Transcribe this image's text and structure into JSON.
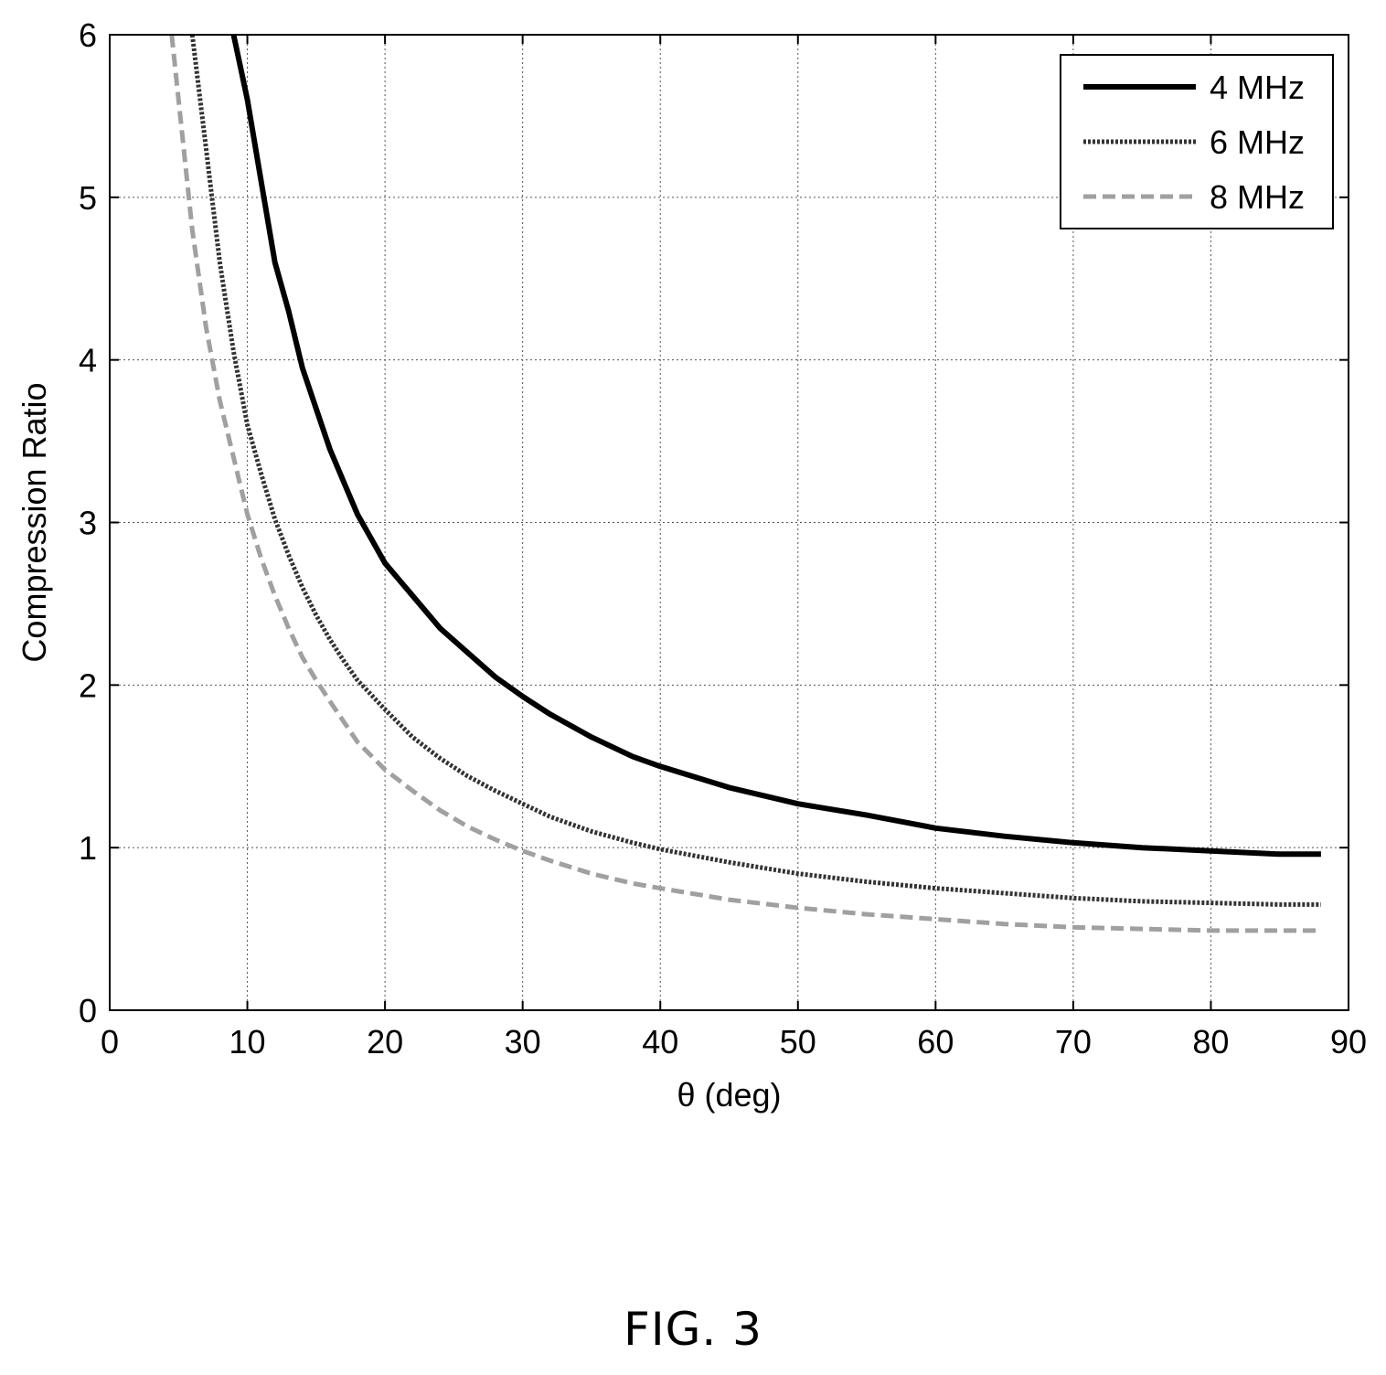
{
  "chart_data": {
    "type": "line",
    "title": "",
    "xlabel": "θ (deg)",
    "ylabel": "Compression Ratio",
    "xlim": [
      0,
      90
    ],
    "ylim": [
      0,
      6
    ],
    "xticks": [
      0,
      10,
      20,
      30,
      40,
      50,
      60,
      70,
      80,
      90
    ],
    "yticks": [
      0,
      1,
      2,
      3,
      4,
      5,
      6
    ],
    "grid": true,
    "legend_position": "top-right",
    "series": [
      {
        "name": "4 MHz",
        "style": "solid",
        "color": "#000000",
        "x": [
          9,
          10,
          11,
          12,
          13,
          14,
          15,
          16,
          17,
          18,
          19,
          20,
          22,
          24,
          26,
          28,
          30,
          32,
          35,
          38,
          40,
          45,
          50,
          55,
          60,
          65,
          70,
          75,
          80,
          85,
          88
        ],
        "y": [
          6.0,
          5.6,
          5.1,
          4.6,
          4.3,
          3.95,
          3.7,
          3.45,
          3.25,
          3.05,
          2.9,
          2.75,
          2.55,
          2.35,
          2.2,
          2.05,
          1.93,
          1.82,
          1.68,
          1.56,
          1.5,
          1.37,
          1.27,
          1.2,
          1.12,
          1.07,
          1.03,
          1.0,
          0.98,
          0.96,
          0.96
        ]
      },
      {
        "name": "6 MHz",
        "style": "dotted",
        "color": "#333333",
        "x": [
          6,
          7,
          8,
          9,
          10,
          11,
          12,
          13,
          14,
          15,
          16,
          17,
          18,
          20,
          22,
          24,
          26,
          28,
          30,
          32,
          35,
          38,
          40,
          45,
          50,
          55,
          60,
          65,
          70,
          75,
          80,
          85,
          88
        ],
        "y": [
          6.0,
          5.3,
          4.6,
          4.05,
          3.6,
          3.3,
          3.02,
          2.8,
          2.6,
          2.43,
          2.28,
          2.15,
          2.03,
          1.85,
          1.68,
          1.55,
          1.44,
          1.35,
          1.27,
          1.19,
          1.1,
          1.03,
          0.99,
          0.91,
          0.84,
          0.79,
          0.75,
          0.72,
          0.69,
          0.67,
          0.66,
          0.65,
          0.65
        ]
      },
      {
        "name": "8 MHz",
        "style": "dashed",
        "color": "#a0a0a0",
        "x": [
          4.5,
          5,
          6,
          7,
          8,
          9,
          10,
          11,
          12,
          13,
          14,
          15,
          16,
          18,
          20,
          22,
          24,
          26,
          28,
          30,
          32,
          35,
          38,
          40,
          45,
          50,
          55,
          60,
          65,
          70,
          75,
          80,
          85,
          88
        ],
        "y": [
          6.0,
          5.6,
          4.8,
          4.2,
          3.75,
          3.4,
          3.05,
          2.78,
          2.55,
          2.35,
          2.17,
          2.03,
          1.9,
          1.65,
          1.48,
          1.35,
          1.23,
          1.13,
          1.05,
          0.98,
          0.92,
          0.84,
          0.78,
          0.75,
          0.68,
          0.63,
          0.59,
          0.56,
          0.53,
          0.51,
          0.5,
          0.49,
          0.49,
          0.49
        ]
      }
    ]
  },
  "caption": "FIG. 3"
}
